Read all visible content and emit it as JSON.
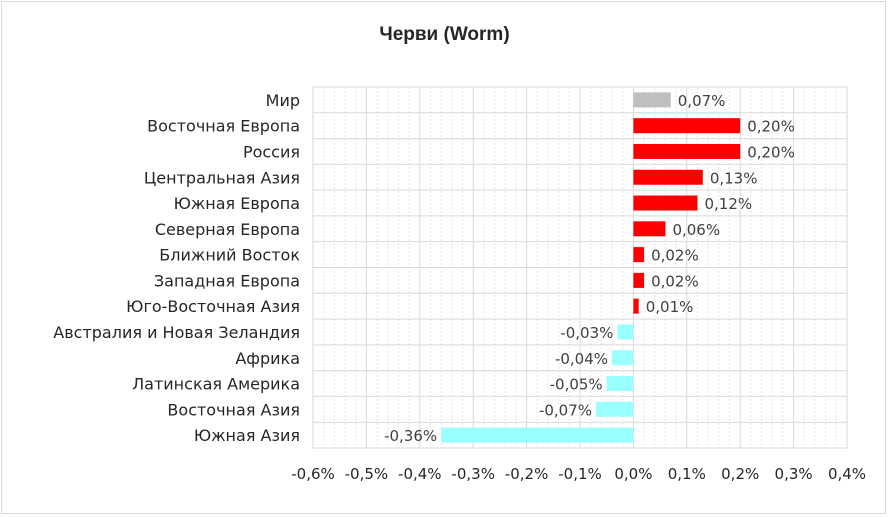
{
  "chart_data": {
    "type": "bar",
    "orientation": "horizontal",
    "title": "Черви (Worm)",
    "categories": [
      "Мир",
      "Восточная Европа",
      "Россия",
      "Центральная Азия",
      "Южная Европа",
      "Северная Европа",
      "Ближний Восток",
      "Западная Европа",
      "Юго-Восточная Азия",
      "Австралия и Новая Зеландия",
      "Африка",
      "Латинская Америка",
      "Восточная Азия",
      "Южная Азия"
    ],
    "values": [
      0.07,
      0.2,
      0.2,
      0.13,
      0.12,
      0.06,
      0.02,
      0.02,
      0.01,
      -0.03,
      -0.04,
      -0.05,
      -0.07,
      -0.36
    ],
    "data_labels": [
      "0,07%",
      "0,20%",
      "0,20%",
      "0,13%",
      "0,12%",
      "0,06%",
      "0,02%",
      "0,02%",
      "0,01%",
      "-0,03%",
      "-0,04%",
      "-0,05%",
      "-0,07%",
      "-0,36%"
    ],
    "xlim": [
      -0.6,
      0.4
    ],
    "xticks": [
      -0.6,
      -0.5,
      -0.4,
      -0.3,
      -0.2,
      -0.1,
      0.0,
      0.1,
      0.2,
      0.3,
      0.4
    ],
    "xtick_labels": [
      "-0,6%",
      "-0,5%",
      "-0,4%",
      "-0,3%",
      "-0,2%",
      "-0,1%",
      "0,0%",
      "0,1%",
      "0,2%",
      "0,3%",
      "0,4%"
    ],
    "grid": true,
    "colors": {
      "world": "#bfbfbf",
      "positive": "#ff0000",
      "negative": "#99ffff"
    }
  }
}
